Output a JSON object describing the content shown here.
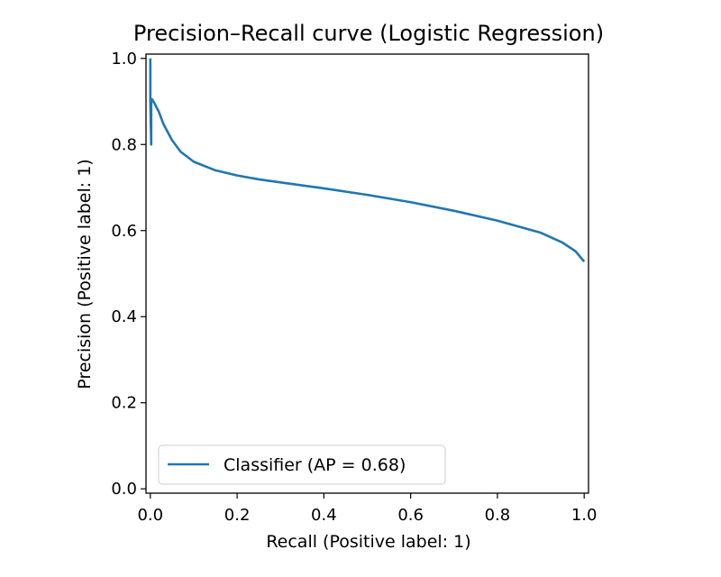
{
  "chart_data": {
    "type": "line",
    "title": "Precision–Recall curve (Logistic Regression)",
    "xlabel": "Recall (Positive label: 1)",
    "ylabel": "Precision (Positive label: 1)",
    "xlim": [
      -0.01,
      1.01
    ],
    "ylim": [
      -0.01,
      1.01
    ],
    "xticks": [
      "0.0",
      "0.2",
      "0.4",
      "0.6",
      "0.8",
      "1.0"
    ],
    "yticks": [
      "0.0",
      "0.2",
      "0.4",
      "0.6",
      "0.8",
      "1.0"
    ],
    "grid": false,
    "legend": {
      "position": "lower-left",
      "entries": [
        "Classifier (AP = 0.68)"
      ]
    },
    "series": [
      {
        "name": "Classifier (AP = 0.68)",
        "color": "#1f77b4",
        "x": [
          0.0,
          0.0,
          0.002,
          0.002,
          0.004,
          0.01,
          0.02,
          0.03,
          0.05,
          0.07,
          0.1,
          0.15,
          0.2,
          0.25,
          0.3,
          0.4,
          0.5,
          0.6,
          0.7,
          0.8,
          0.9,
          0.95,
          0.98,
          1.0
        ],
        "y": [
          1.0,
          0.9,
          0.8,
          0.9,
          0.905,
          0.895,
          0.875,
          0.848,
          0.81,
          0.783,
          0.76,
          0.74,
          0.728,
          0.719,
          0.712,
          0.698,
          0.683,
          0.666,
          0.646,
          0.623,
          0.595,
          0.572,
          0.552,
          0.528
        ]
      }
    ]
  }
}
